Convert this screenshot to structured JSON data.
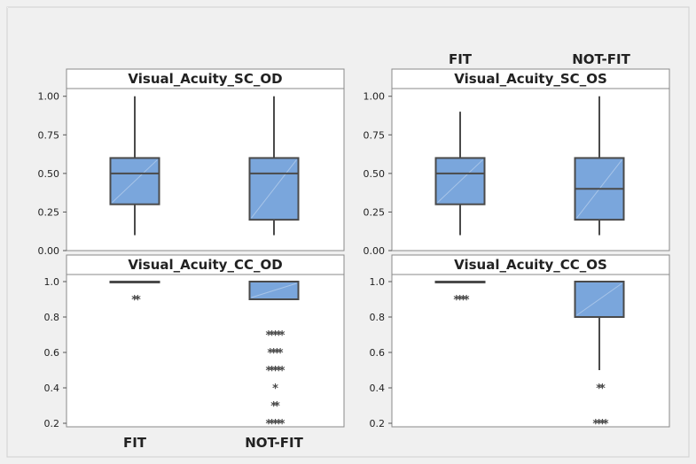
{
  "top_labels": [
    "FIT",
    "NOT-FIT"
  ],
  "bottom_labels": [
    "FIT",
    "NOT-FIT"
  ],
  "colors": {
    "background": "#f0f0f0",
    "box_fill": "#7aa6dc",
    "box_stroke": "#4a4a4a",
    "whisker": "#4a4a4a",
    "outlier": "#4a4a4a",
    "panel_border": "#8a8a8a"
  },
  "chart_data": [
    {
      "type": "box",
      "title": "Visual_Acuity_SC_OD",
      "categories": [
        "FIT",
        "NOT-FIT"
      ],
      "ylim": [
        0.0,
        1.05
      ],
      "yticks": [
        0.0,
        0.25,
        0.5,
        0.75,
        1.0
      ],
      "ytick_labels": [
        "0.00",
        "0.25",
        "0.50",
        "0.75",
        "1.00"
      ],
      "boxes": [
        {
          "category": "FIT",
          "min": 0.1,
          "q1": 0.3,
          "median": 0.5,
          "q3": 0.6,
          "max": 1.0,
          "outliers": []
        },
        {
          "category": "NOT-FIT",
          "min": 0.1,
          "q1": 0.2,
          "median": 0.5,
          "q3": 0.6,
          "max": 1.0,
          "outliers": []
        }
      ]
    },
    {
      "type": "box",
      "title": "Visual_Acuity_SC_OS",
      "categories": [
        "FIT",
        "NOT-FIT"
      ],
      "ylim": [
        0.0,
        1.05
      ],
      "yticks": [
        0.0,
        0.25,
        0.5,
        0.75,
        1.0
      ],
      "ytick_labels": [
        "0.00",
        "0.25",
        "0.50",
        "0.75",
        "1.00"
      ],
      "boxes": [
        {
          "category": "FIT",
          "min": 0.1,
          "q1": 0.3,
          "median": 0.5,
          "q3": 0.6,
          "max": 0.9,
          "outliers": []
        },
        {
          "category": "NOT-FIT",
          "min": 0.1,
          "q1": 0.2,
          "median": 0.4,
          "q3": 0.6,
          "max": 1.0,
          "outliers": []
        }
      ]
    },
    {
      "type": "box",
      "title": "Visual_Acuity_CC_OD",
      "categories": [
        "FIT",
        "NOT-FIT"
      ],
      "ylim": [
        0.18,
        1.04
      ],
      "yticks": [
        0.2,
        0.4,
        0.6,
        0.8,
        1.0
      ],
      "ytick_labels": [
        "0.2",
        "0.4",
        "0.6",
        "0.8",
        "1.0"
      ],
      "boxes": [
        {
          "category": "FIT",
          "min": 1.0,
          "q1": 1.0,
          "median": 1.0,
          "q3": 1.0,
          "max": 1.0,
          "outliers": [
            {
              "y": 0.9,
              "count": 2
            }
          ]
        },
        {
          "category": "NOT-FIT",
          "min": 0.9,
          "q1": 0.9,
          "median": 1.0,
          "q3": 1.0,
          "max": 1.0,
          "outliers": [
            {
              "y": 0.7,
              "count": 5
            },
            {
              "y": 0.6,
              "count": 4
            },
            {
              "y": 0.5,
              "count": 5
            },
            {
              "y": 0.4,
              "count": 1
            },
            {
              "y": 0.3,
              "count": 2
            },
            {
              "y": 0.2,
              "count": 5
            }
          ]
        }
      ]
    },
    {
      "type": "box",
      "title": "Visual_Acuity_CC_OS",
      "categories": [
        "FIT",
        "NOT-FIT"
      ],
      "ylim": [
        0.18,
        1.04
      ],
      "yticks": [
        0.2,
        0.4,
        0.6,
        0.8,
        1.0
      ],
      "ytick_labels": [
        "0.2",
        "0.4",
        "0.6",
        "0.8",
        "1.0"
      ],
      "boxes": [
        {
          "category": "FIT",
          "min": 1.0,
          "q1": 1.0,
          "median": 1.0,
          "q3": 1.0,
          "max": 1.0,
          "outliers": [
            {
              "y": 0.9,
              "count": 4
            }
          ]
        },
        {
          "category": "NOT-FIT",
          "min": 0.5,
          "q1": 0.8,
          "median": 1.0,
          "q3": 1.0,
          "max": 1.0,
          "outliers": [
            {
              "y": 0.4,
              "count": 2
            },
            {
              "y": 0.2,
              "count": 4
            }
          ]
        }
      ]
    }
  ]
}
